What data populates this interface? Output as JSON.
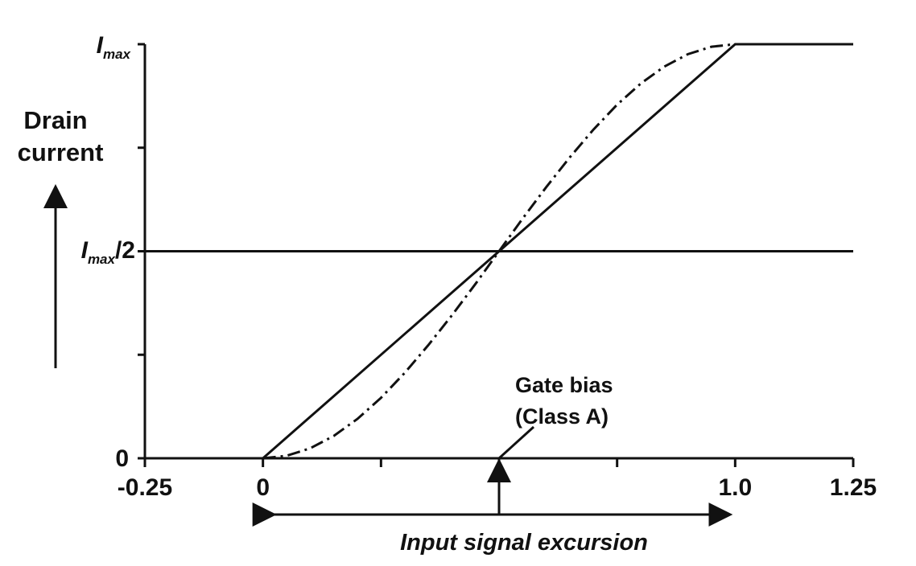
{
  "chart_data": {
    "type": "line",
    "title": "",
    "xlabel": "Input signal excursion",
    "ylabel_line1": "Drain",
    "ylabel_line2": "current",
    "xlim": [
      -0.25,
      1.25
    ],
    "ylim": [
      0,
      1
    ],
    "x_ticks": [
      -0.25,
      0,
      0.25,
      0.5,
      0.75,
      1.0,
      1.25
    ],
    "x_tick_labels": [
      {
        "x": -0.25,
        "text": "-0.25"
      },
      {
        "x": 0,
        "text": "0"
      },
      {
        "x": 1.0,
        "text": "1.0"
      },
      {
        "x": 1.25,
        "text": "1.25"
      }
    ],
    "y_ticks": [
      0,
      0.25,
      0.5,
      0.75,
      1.0
    ],
    "y_tick_labels": {
      "zero": "0",
      "half_main": "I",
      "half_sub": "max",
      "half_suffix": "/2",
      "max_main": "I",
      "max_sub": "max"
    },
    "half_line": {
      "y": 0.5,
      "x_from": -0.25,
      "x_to": 1.25
    },
    "series": [
      {
        "style": "solid",
        "x": [
          -0.25,
          0,
          1.0,
          1.25
        ],
        "y": [
          0,
          0,
          1.0,
          1.0
        ]
      },
      {
        "style": "dash-dot",
        "x": [
          0,
          0.05,
          0.1,
          0.15,
          0.2,
          0.25,
          0.3,
          0.35,
          0.4,
          0.45,
          0.5,
          0.55,
          0.6,
          0.65,
          0.7,
          0.75,
          0.8,
          0.85,
          0.9,
          0.95,
          1.0
        ],
        "y": [
          0,
          0.006,
          0.024,
          0.054,
          0.095,
          0.146,
          0.206,
          0.273,
          0.345,
          0.421,
          0.5,
          0.579,
          0.655,
          0.727,
          0.794,
          0.854,
          0.905,
          0.946,
          0.976,
          0.994,
          1.0
        ]
      }
    ],
    "annotation": {
      "line1": "Gate bias",
      "line2": "(Class A)",
      "x": 0.5,
      "y": 0
    },
    "excursion_range": [
      0,
      1.0
    ]
  }
}
